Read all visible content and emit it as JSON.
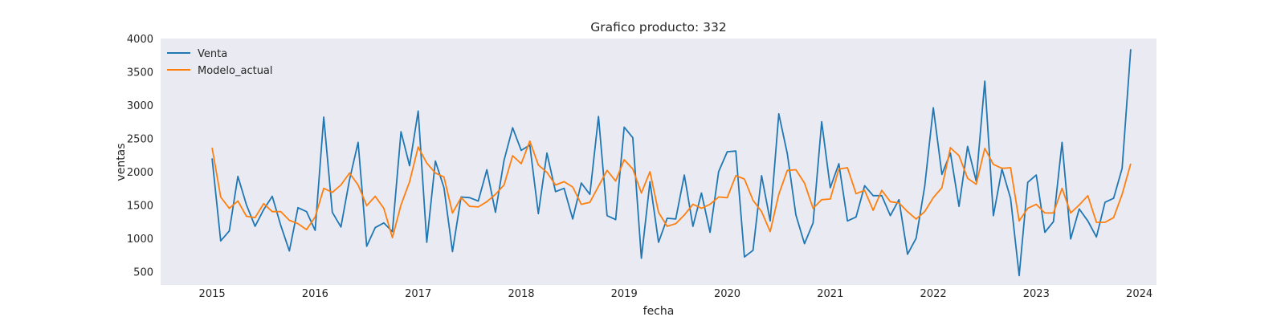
{
  "chart_data": {
    "type": "line",
    "title": "Grafico producto: 332",
    "xlabel": "fecha",
    "ylabel": "ventas",
    "x_start": "2015-01",
    "x_frequency": "monthly",
    "xlim": [
      "2014-07",
      "2024-03"
    ],
    "ylim": [
      300,
      4000
    ],
    "xticks": [
      "2015",
      "2016",
      "2017",
      "2018",
      "2019",
      "2020",
      "2021",
      "2022",
      "2023",
      "2024"
    ],
    "yticks": [
      500,
      1000,
      1500,
      2000,
      2500,
      3000,
      3500,
      4000
    ],
    "grid": false,
    "legend_position": "upper-left",
    "series": [
      {
        "name": "Venta",
        "color": "#1f77b4",
        "values": [
          2200,
          960,
          1110,
          1930,
          1500,
          1180,
          1430,
          1630,
          1190,
          810,
          1460,
          1400,
          1120,
          2820,
          1390,
          1170,
          1880,
          2440,
          880,
          1160,
          1230,
          1100,
          2600,
          2090,
          2910,
          940,
          2160,
          1760,
          800,
          1620,
          1610,
          1560,
          2030,
          1390,
          2170,
          2660,
          2320,
          2400,
          1370,
          2280,
          1700,
          1750,
          1290,
          1830,
          1660,
          2830,
          1340,
          1280,
          2670,
          2510,
          700,
          1850,
          940,
          1300,
          1290,
          1950,
          1180,
          1680,
          1090,
          2000,
          2300,
          2310,
          720,
          820,
          1940,
          1260,
          2870,
          2270,
          1350,
          920,
          1230,
          2750,
          1760,
          2120,
          1260,
          1320,
          1790,
          1640,
          1640,
          1340,
          1580,
          760,
          1000,
          1780,
          2960,
          1960,
          2280,
          1480,
          2380,
          1860,
          3360,
          1340,
          2040,
          1600,
          440,
          1840,
          1950,
          1090,
          1250,
          2440,
          990,
          1440,
          1260,
          1020,
          1540,
          1600,
          2050,
          3840
        ]
      },
      {
        "name": "Modelo_actual",
        "color": "#ff7f0e",
        "values": [
          2360,
          1620,
          1450,
          1560,
          1330,
          1310,
          1520,
          1400,
          1400,
          1270,
          1220,
          1130,
          1320,
          1750,
          1690,
          1800,
          1980,
          1800,
          1490,
          1630,
          1450,
          1010,
          1500,
          1850,
          2370,
          2130,
          1980,
          1920,
          1380,
          1610,
          1480,
          1470,
          1550,
          1660,
          1800,
          2240,
          2120,
          2460,
          2100,
          1990,
          1800,
          1850,
          1770,
          1510,
          1540,
          1780,
          2020,
          1860,
          2180,
          2040,
          1680,
          2000,
          1390,
          1180,
          1220,
          1350,
          1510,
          1450,
          1510,
          1620,
          1610,
          1940,
          1890,
          1570,
          1400,
          1100,
          1660,
          2020,
          2030,
          1830,
          1450,
          1580,
          1590,
          2040,
          2060,
          1670,
          1720,
          1420,
          1720,
          1550,
          1530,
          1400,
          1290,
          1400,
          1610,
          1760,
          2360,
          2240,
          1900,
          1810,
          2350,
          2110,
          2050,
          2060,
          1260,
          1450,
          1510,
          1380,
          1380,
          1750,
          1380,
          1500,
          1640,
          1240,
          1240,
          1310,
          1660,
          2120
        ]
      }
    ]
  }
}
